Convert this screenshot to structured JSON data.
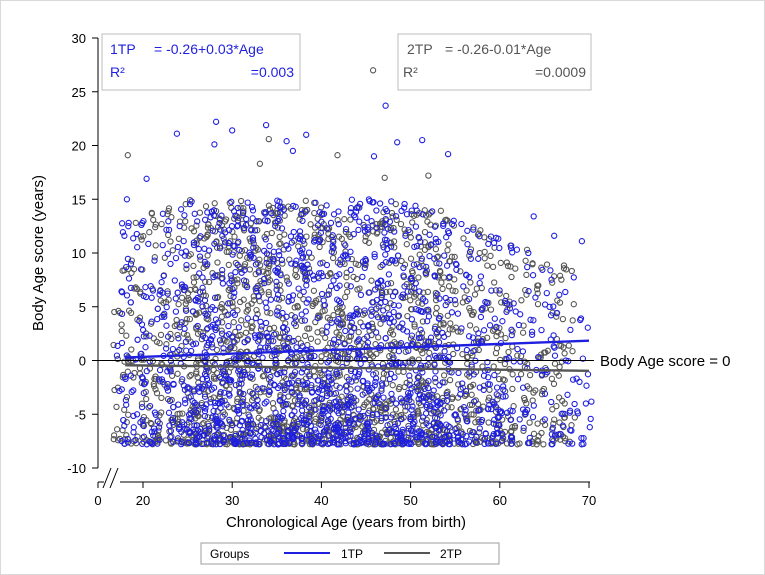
{
  "chart_data": {
    "type": "scatter",
    "xlabel": "Chronological Age (years from birth)",
    "ylabel": "Body Age score (years)",
    "xlim": [
      0,
      70
    ],
    "ylim": [
      -10,
      30
    ],
    "x_axis_break": true,
    "x_ticks": [
      0,
      20,
      30,
      40,
      50,
      60,
      70
    ],
    "y_ticks": [
      -10,
      -5,
      0,
      5,
      10,
      15,
      20,
      25,
      30
    ],
    "grid": false,
    "reference_line": {
      "y": 0,
      "label": "Body Age score = 0"
    },
    "series": [
      {
        "name": "1TP",
        "color": "#1f1fe0",
        "regression": {
          "intercept": -0.26,
          "slope": 0.03,
          "x_range": [
            18,
            70
          ]
        },
        "annotation": {
          "label": "1TP",
          "equation": "= -0.26+0.03*Age",
          "r2_label": "R²",
          "r2_value": "=0.003"
        },
        "x_range": [
          17,
          70
        ],
        "y_range": [
          -8,
          23.7
        ],
        "outliers": [
          [
            23.8,
            21.1
          ],
          [
            28.0,
            20.1
          ],
          [
            28.2,
            22.2
          ],
          [
            30.0,
            21.4
          ],
          [
            33.8,
            21.9
          ],
          [
            36.1,
            20.4
          ],
          [
            36.8,
            19.5
          ],
          [
            38.3,
            21.0
          ],
          [
            47.2,
            23.7
          ],
          [
            48.5,
            20.3
          ],
          [
            51.3,
            20.5
          ],
          [
            54.2,
            19.2
          ],
          [
            45.9,
            19.0
          ],
          [
            20.4,
            16.9
          ],
          [
            18.2,
            15.0
          ],
          [
            63.8,
            13.4
          ],
          [
            66.1,
            11.6
          ],
          [
            69.2,
            11.1
          ]
        ]
      },
      {
        "name": "2TP",
        "color": "#555555",
        "regression": {
          "intercept": -0.26,
          "slope": -0.01,
          "x_range": [
            18,
            70
          ]
        },
        "annotation": {
          "label": "2TP",
          "equation": "= -0.26-0.01*Age",
          "r2_label": "R²",
          "r2_value": "=0.0009"
        },
        "x_range": [
          17,
          68
        ],
        "y_range": [
          -8,
          27
        ],
        "outliers": [
          [
            18.3,
            19.1
          ],
          [
            45.8,
            27.0
          ],
          [
            41.8,
            19.1
          ],
          [
            34.1,
            20.6
          ],
          [
            47.1,
            17.0
          ],
          [
            52.0,
            17.2
          ],
          [
            33.1,
            18.3
          ],
          [
            66.1,
            -5.5
          ]
        ]
      }
    ],
    "legend": {
      "position": "bottom",
      "title": "Groups",
      "entries": [
        "1TP",
        "2TP"
      ]
    }
  }
}
